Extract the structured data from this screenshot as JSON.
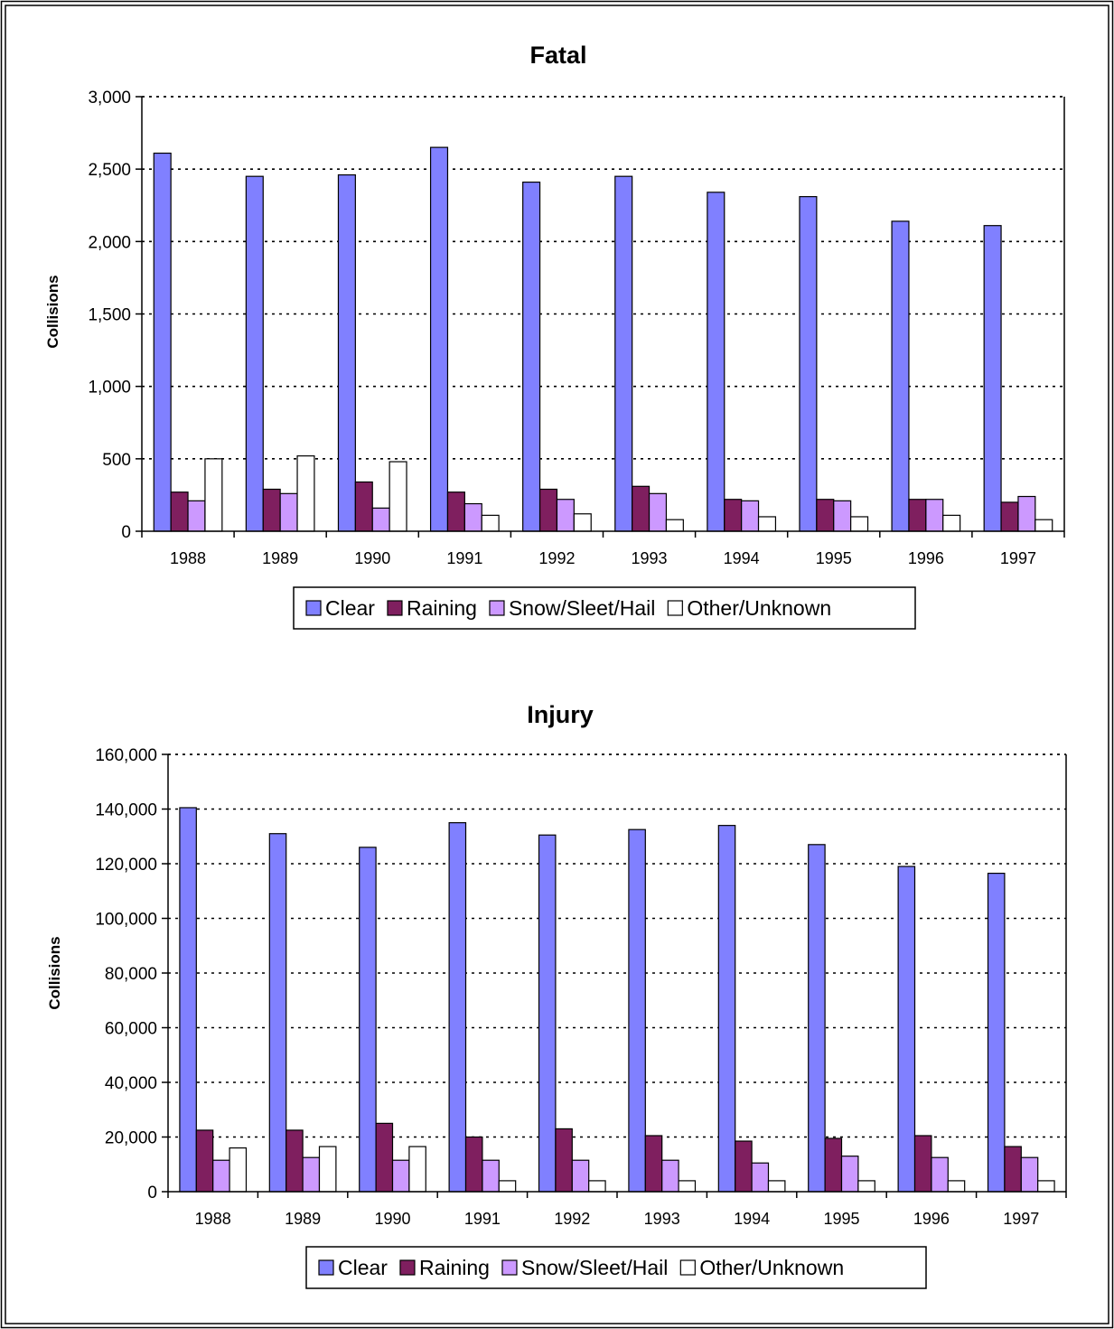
{
  "colors": {
    "clear": "#8080ff",
    "raining": "#7f1f5f",
    "snow": "#cc99ff",
    "other": "#ffffff"
  },
  "chart_data": [
    {
      "type": "bar",
      "title": "Fatal",
      "ylabel": "Collisions",
      "ylim": [
        0,
        3000
      ],
      "yticks": [
        "0",
        "500",
        "1,000",
        "1,500",
        "2,000",
        "2,500",
        "3,000"
      ],
      "categories": [
        "1988",
        "1989",
        "1990",
        "1991",
        "1992",
        "1993",
        "1994",
        "1995",
        "1996",
        "1997"
      ],
      "grid": "dotted horizontal",
      "legend_position": "bottom",
      "series": [
        {
          "name": "Clear",
          "color": "#8080ff",
          "values": [
            2610,
            2450,
            2460,
            2650,
            2410,
            2450,
            2340,
            2310,
            2140,
            2110
          ]
        },
        {
          "name": "Raining",
          "color": "#7f1f5f",
          "values": [
            270,
            290,
            340,
            270,
            290,
            310,
            220,
            220,
            220,
            200
          ]
        },
        {
          "name": "Snow/Sleet/Hail",
          "color": "#cc99ff",
          "values": [
            210,
            260,
            160,
            190,
            220,
            260,
            210,
            210,
            220,
            240
          ]
        },
        {
          "name": "Other/Unknown",
          "color": "#ffffff",
          "values": [
            500,
            520,
            480,
            110,
            120,
            80,
            100,
            100,
            110,
            80
          ]
        }
      ]
    },
    {
      "type": "bar",
      "title": "Injury",
      "ylabel": "Collisions",
      "ylim": [
        0,
        160000
      ],
      "yticks": [
        "0",
        "20,000",
        "40,000",
        "60,000",
        "80,000",
        "100,000",
        "120,000",
        "140,000",
        "160,000"
      ],
      "categories": [
        "1988",
        "1989",
        "1990",
        "1991",
        "1992",
        "1993",
        "1994",
        "1995",
        "1996",
        "1997"
      ],
      "grid": "dotted horizontal",
      "legend_position": "bottom",
      "series": [
        {
          "name": "Clear",
          "color": "#8080ff",
          "values": [
            140500,
            131000,
            126000,
            135000,
            130500,
            132500,
            134000,
            127000,
            119000,
            116500
          ]
        },
        {
          "name": "Raining",
          "color": "#7f1f5f",
          "values": [
            22500,
            22500,
            25000,
            20000,
            23000,
            20500,
            18500,
            19500,
            20500,
            16500
          ]
        },
        {
          "name": "Snow/Sleet/Hail",
          "color": "#cc99ff",
          "values": [
            11500,
            12500,
            11500,
            11500,
            11500,
            11500,
            10500,
            13000,
            12500,
            12500
          ]
        },
        {
          "name": "Other/Unknown",
          "color": "#ffffff",
          "values": [
            16000,
            16500,
            16500,
            4000,
            4000,
            4000,
            4000,
            4000,
            4000,
            4000
          ]
        }
      ]
    }
  ]
}
